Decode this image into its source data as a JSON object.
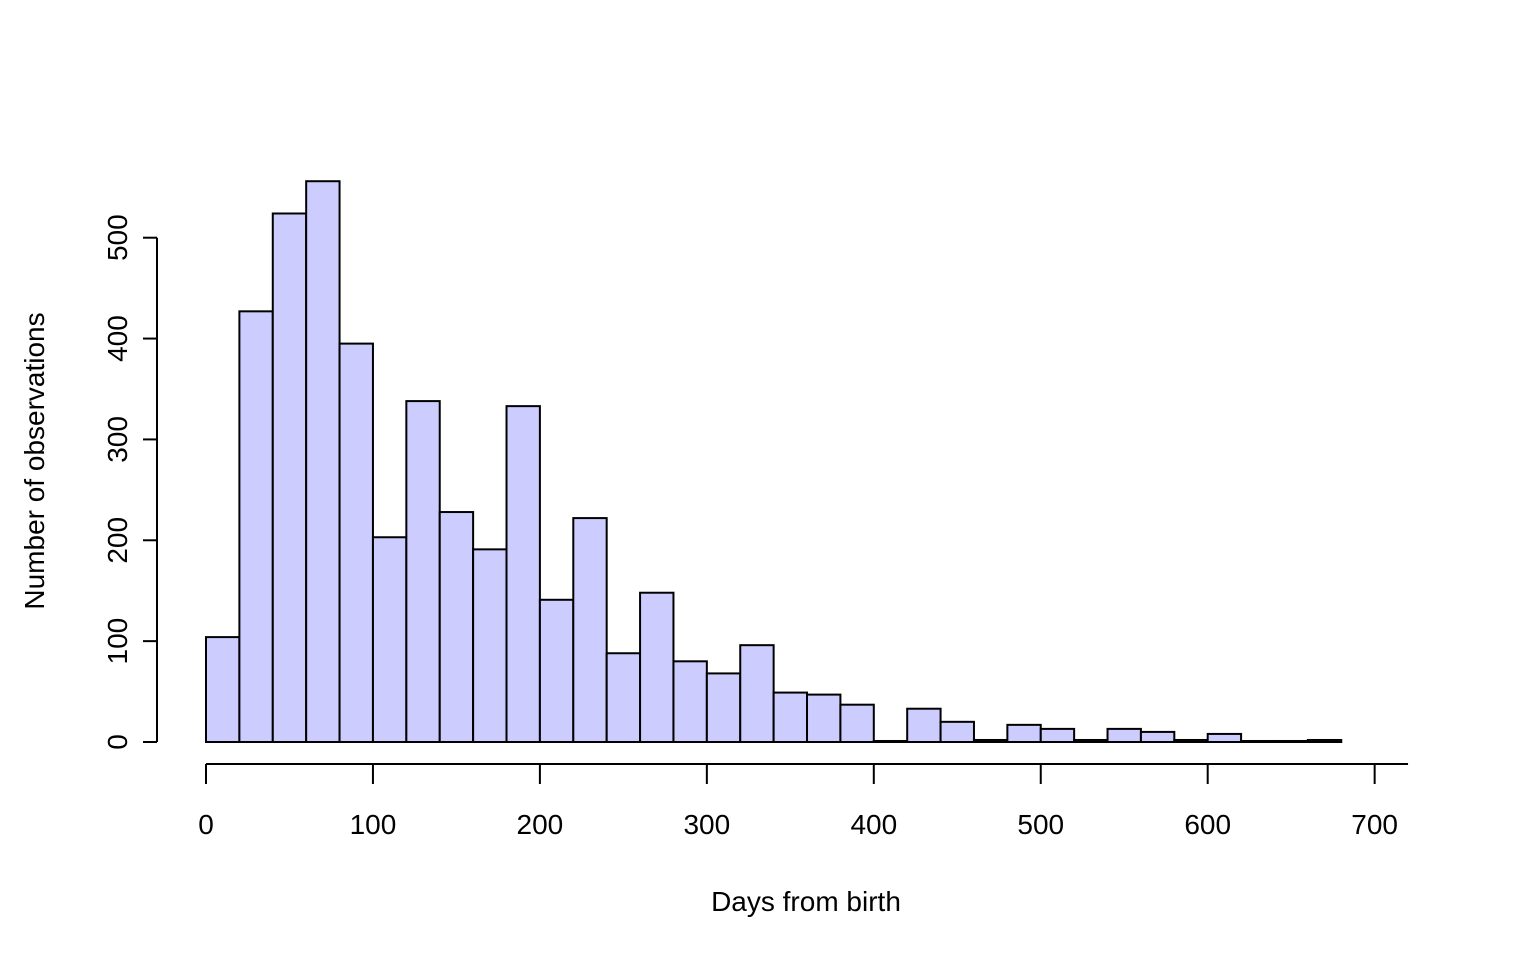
{
  "chart_data": {
    "type": "bar",
    "subtype": "histogram",
    "xlabel": "Days from birth",
    "ylabel": "Number of observations",
    "bin_width": 20,
    "bins_start": [
      0,
      20,
      40,
      60,
      80,
      100,
      120,
      140,
      160,
      180,
      200,
      220,
      240,
      260,
      280,
      300,
      320,
      340,
      360,
      380,
      400,
      420,
      440,
      460,
      480,
      500,
      520,
      540,
      560,
      580,
      600,
      620,
      640,
      660,
      680,
      700
    ],
    "values": [
      104,
      427,
      524,
      556,
      395,
      203,
      338,
      228,
      191,
      333,
      141,
      222,
      88,
      148,
      80,
      68,
      96,
      49,
      47,
      37,
      1,
      33,
      20,
      2,
      17,
      13,
      2,
      13,
      10,
      2,
      8,
      1,
      1,
      2,
      0,
      0
    ],
    "xlim": [
      0,
      720
    ],
    "ylim": [
      0,
      556
    ],
    "x_ticks": [
      "0",
      "100",
      "200",
      "300",
      "400",
      "500",
      "600",
      "700"
    ],
    "y_ticks": [
      "0",
      "100",
      "200",
      "300",
      "400",
      "500"
    ],
    "bar_color": "#ccccff",
    "edge_color": "#000000",
    "grid": false
  }
}
